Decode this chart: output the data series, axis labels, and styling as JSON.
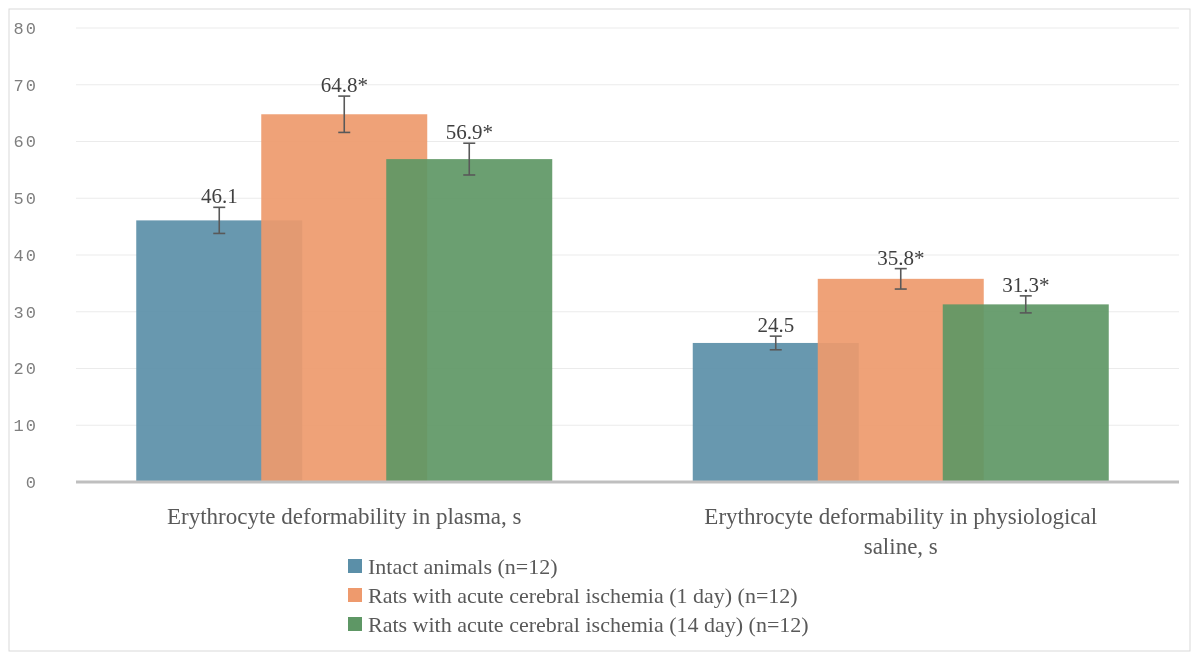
{
  "chart_data": {
    "type": "bar",
    "categories": [
      "Erythrocyte deformability in plasma, s",
      "Erythrocyte deformability in physiological saline, s"
    ],
    "series": [
      {
        "name": "Intact animals  (n=12)",
        "color": "#5b8fa8",
        "values": [
          46.1,
          24.5
        ],
        "errors": [
          2.3,
          1.2
        ],
        "value_labels": [
          "46.1",
          "24.5"
        ]
      },
      {
        "name": "Rats with acute cerebral ischemia (1 day) (n=12)",
        "color": "#ee9a6d",
        "values": [
          64.8,
          35.8
        ],
        "errors": [
          3.2,
          1.8
        ],
        "value_labels": [
          "64.8*",
          "35.8*"
        ]
      },
      {
        "name": "Rats with acute cerebral ischemia  (14 day) (n=12)",
        "color": "#5e9765",
        "values": [
          56.9,
          31.3
        ],
        "errors": [
          2.8,
          1.5
        ],
        "value_labels": [
          "56.9*",
          "31.3*"
        ]
      }
    ],
    "ylim": [
      0,
      80
    ],
    "yticks": [
      0,
      10,
      20,
      30,
      40,
      50,
      60,
      70,
      80
    ],
    "grid": "y",
    "legend": "bottom"
  }
}
